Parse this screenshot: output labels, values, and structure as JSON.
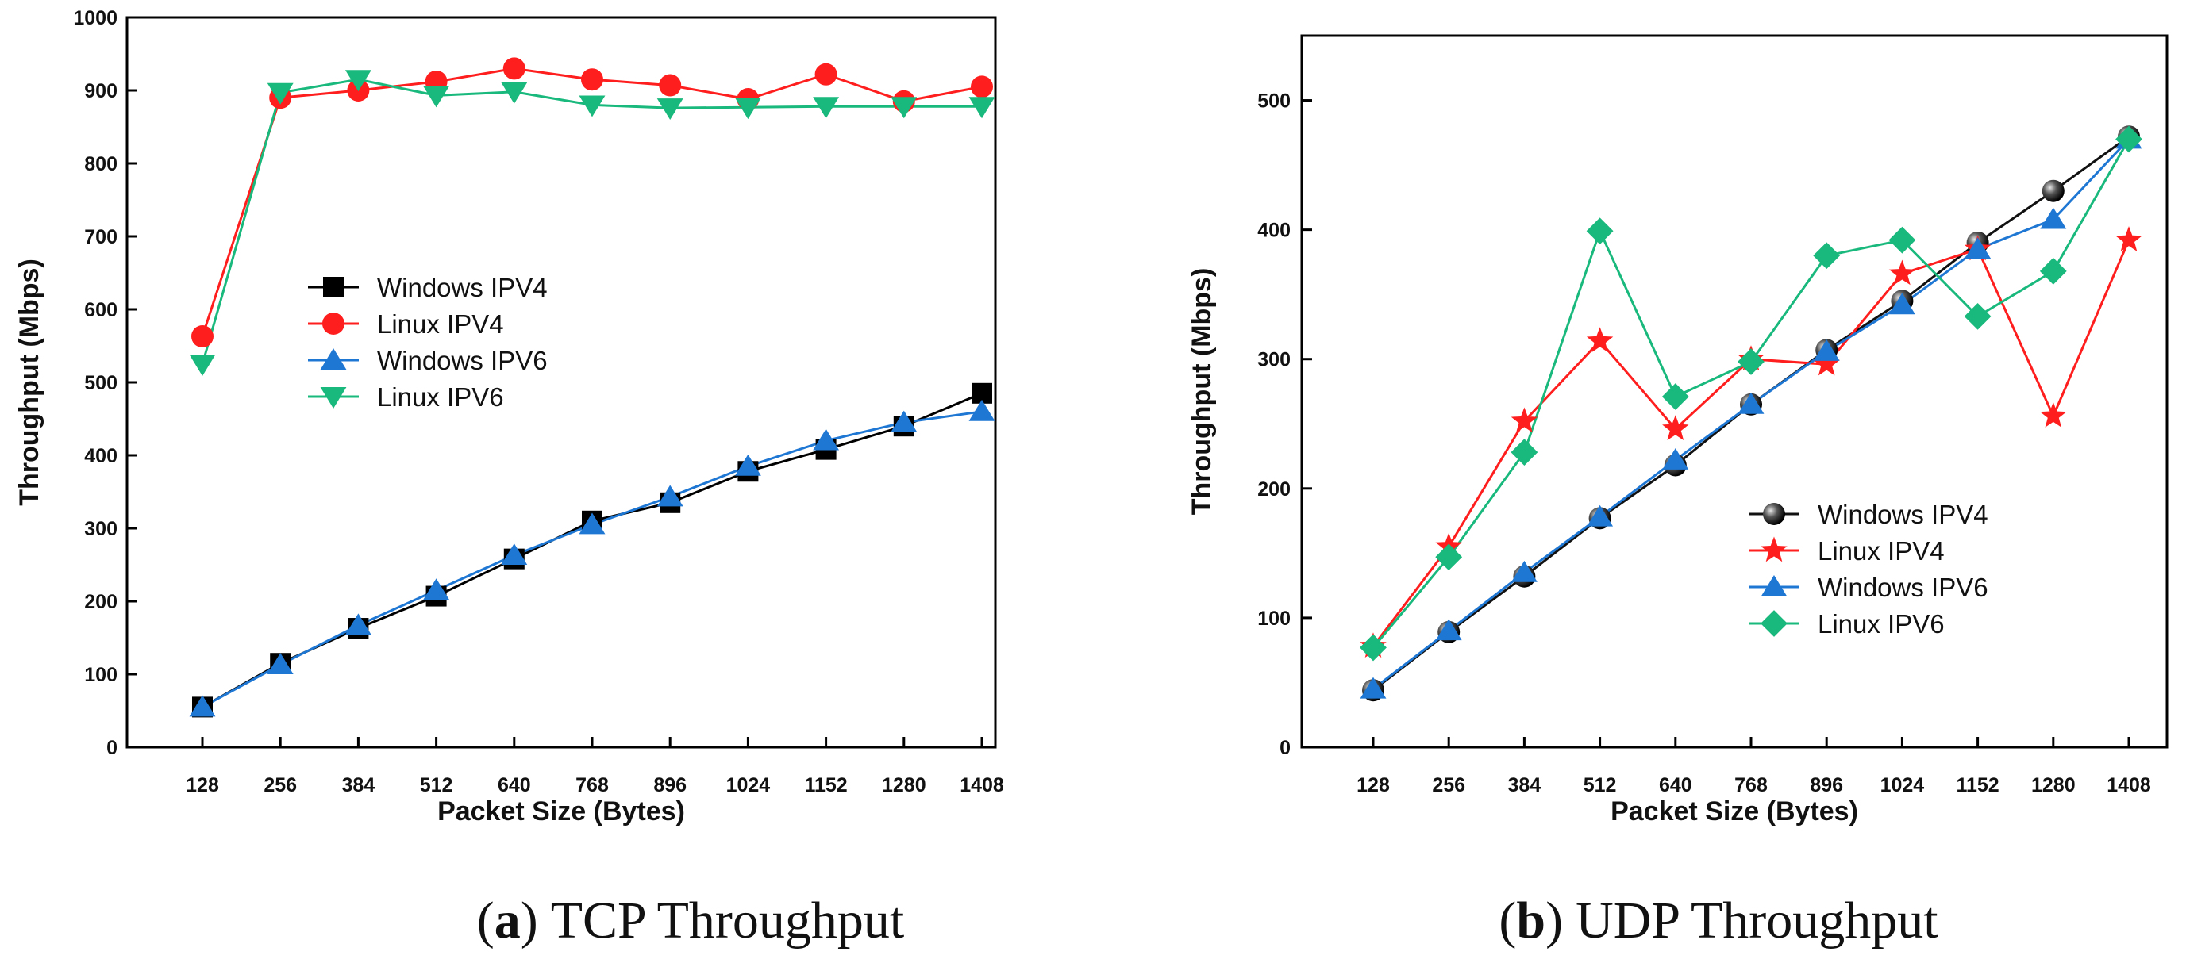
{
  "chart_data": [
    {
      "id": "a",
      "type": "line",
      "title": "TCP Throughput",
      "caption_letter": "a",
      "caption_open": "(",
      "caption_close": ")",
      "xlabel": "Packet Size (Bytes)",
      "ylabel": "Throughput (Mbps)",
      "categories": [
        "128",
        "256",
        "384",
        "512",
        "640",
        "768",
        "896",
        "1024",
        "1152",
        "1280",
        "1408"
      ],
      "ylim": [
        0,
        1000
      ],
      "yticks": [
        0,
        100,
        200,
        300,
        400,
        500,
        600,
        700,
        800,
        900,
        1000
      ],
      "legend_position": "center",
      "series": [
        {
          "name": "Windows IPV4",
          "color": "#000000",
          "marker": "square",
          "values": [
            55,
            115,
            163,
            207,
            258,
            310,
            335,
            378,
            408,
            440,
            485
          ]
        },
        {
          "name": "Linux IPV4",
          "color": "#ff1e1e",
          "marker": "circle",
          "values": [
            563,
            890,
            900,
            912,
            930,
            915,
            907,
            888,
            922,
            885,
            905
          ]
        },
        {
          "name": "Windows IPV6",
          "color": "#1f77d4",
          "marker": "triangle-up",
          "values": [
            55,
            113,
            167,
            215,
            263,
            305,
            343,
            385,
            420,
            445,
            460
          ]
        },
        {
          "name": "Linux IPV6",
          "color": "#19b87c",
          "marker": "triangle-down",
          "values": [
            525,
            897,
            915,
            893,
            898,
            880,
            876,
            877,
            878,
            878,
            878
          ]
        }
      ]
    },
    {
      "id": "b",
      "type": "line",
      "title": "UDP Throughput",
      "caption_letter": "b",
      "caption_open": "(",
      "caption_close": ")",
      "xlabel": "Packet Size (Bytes)",
      "ylabel": "Throughput (Mbps)",
      "categories": [
        "128",
        "256",
        "384",
        "512",
        "640",
        "768",
        "896",
        "1024",
        "1152",
        "1280",
        "1408"
      ],
      "ylim": [
        0,
        550
      ],
      "yticks": [
        0,
        100,
        200,
        300,
        400,
        500
      ],
      "legend_position": "bottom-right",
      "series": [
        {
          "name": "Windows IPV4",
          "color": "#111111",
          "marker": "sphere",
          "values": [
            44,
            89,
            132,
            177,
            218,
            265,
            307,
            345,
            390,
            430,
            472
          ]
        },
        {
          "name": "Linux IPV4",
          "color": "#ff1e1e",
          "marker": "star",
          "values": [
            78,
            155,
            252,
            314,
            246,
            300,
            296,
            366,
            385,
            256,
            392
          ]
        },
        {
          "name": "Windows IPV6",
          "color": "#1f77d4",
          "marker": "triangle-up",
          "values": [
            45,
            90,
            135,
            178,
            222,
            265,
            306,
            342,
            385,
            408,
            470
          ]
        },
        {
          "name": "Linux IPV6",
          "color": "#19b87c",
          "marker": "diamond",
          "values": [
            77,
            147,
            228,
            399,
            271,
            298,
            380,
            392,
            333,
            368,
            470
          ]
        }
      ]
    }
  ]
}
